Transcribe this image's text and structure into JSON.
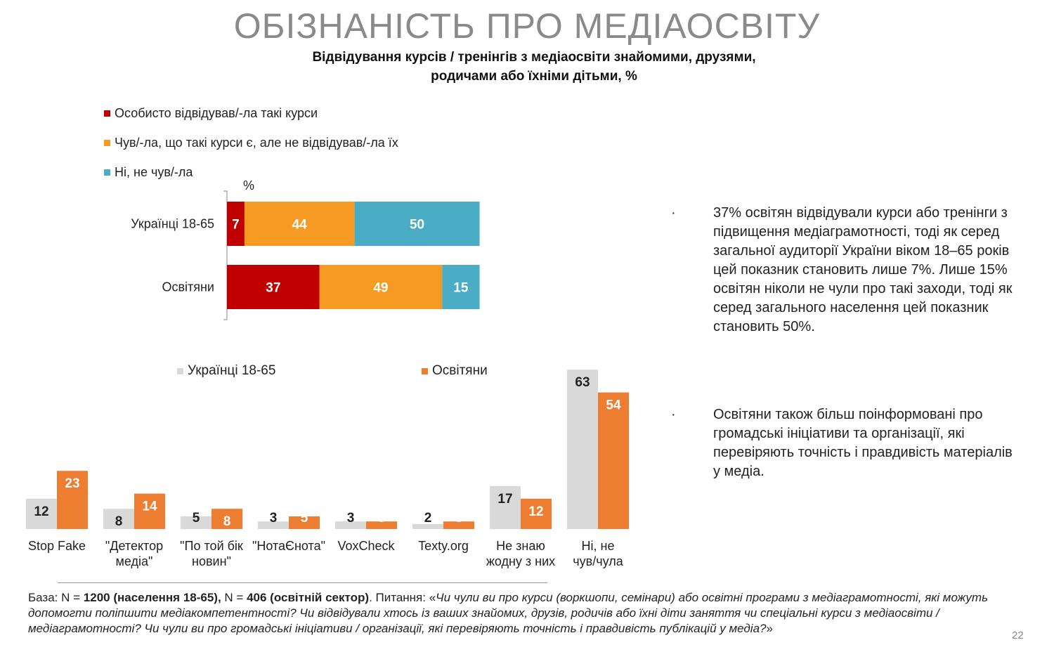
{
  "title": "ОБІЗНАНІСТЬ ПРО МЕДІАОСВІТУ",
  "subtitle_line1": "Відвідування курсів / тренінгів з медіаосвіти знайомими, друзями,",
  "subtitle_line2": "родичами або їхніми дітьми, %",
  "colors": {
    "red": "#c00000",
    "orange": "#f79a24",
    "teal": "#4bacc6",
    "gray": "#d9d9d9",
    "orange2": "#ed7d31"
  },
  "chart_data": [
    {
      "type": "bar",
      "orientation": "horizontal",
      "stacked": true,
      "unit_label": "%",
      "categories": [
        "Українці 18-65",
        "Освітяни"
      ],
      "series": [
        {
          "name": "Особисто відвідував/-ла такі курси",
          "values": [
            7,
            37
          ]
        },
        {
          "name": "Чув/-ла, що такі курси є, але не відвідував/-ла їх",
          "values": [
            44,
            49
          ]
        },
        {
          "name": "Ні, не чув/-ла",
          "values": [
            50,
            15
          ]
        }
      ],
      "legend": "top-left"
    },
    {
      "type": "bar",
      "orientation": "vertical",
      "categories": [
        [
          "Stop Fake"
        ],
        [
          "\"Детектор",
          "медіа\""
        ],
        [
          "\"По той бік",
          "новин\""
        ],
        [
          "\"НотаЄнота\""
        ],
        [
          "VoxCheck"
        ],
        [
          "Texty.org"
        ],
        [
          "Не знаю",
          "жодну з них"
        ],
        [
          "Ні, не",
          "чув/чула"
        ]
      ],
      "series": [
        {
          "name": "Українці 18-65",
          "values": [
            12,
            8,
            5,
            3,
            3,
            2,
            17,
            63
          ]
        },
        {
          "name": "Освітяни",
          "values": [
            23,
            14,
            8,
            5,
            3,
            3,
            12,
            54
          ]
        }
      ],
      "legend": "top"
    }
  ],
  "bullets": [
    "37% освітян відвідували курси або тренінги з підвищення медіаграмотності, тоді як серед загальної аудиторії України віком 18–65 років цей показник становить лише 7%. Лише 15% освітян ніколи не чули про такі заходи, тоді як серед загального населення цей показник становить 50%.",
    "Освітяни також більш поінформовані про громадські ініціативи та організації, які перевіряють точність і правдивість матеріалів у медіа."
  ],
  "bullet_marker": "·",
  "footer": {
    "p1": "База: N = ",
    "b1": "1200 (населення 18-65),",
    "p2": " N = ",
    "b2": "406 (освітній сектор)",
    "p3": ". Питання: «",
    "i1": "Чи чули ви про курси (воркшопи, семінари) або освітні програми з медіаграмотності, які можуть допомогти поліпшити медіакомпетентності? Чи відвідували хтось із ваших знайомих, друзів, родичів або їхні діти заняття чи спеціальні курси з медіаосвіти / медіаграмотності? Чи чули ви про громадські ініціативи / організації, які перевіряють точність і правдивість публікацій у медіа?",
    "p4": "»"
  },
  "page_number": "22"
}
